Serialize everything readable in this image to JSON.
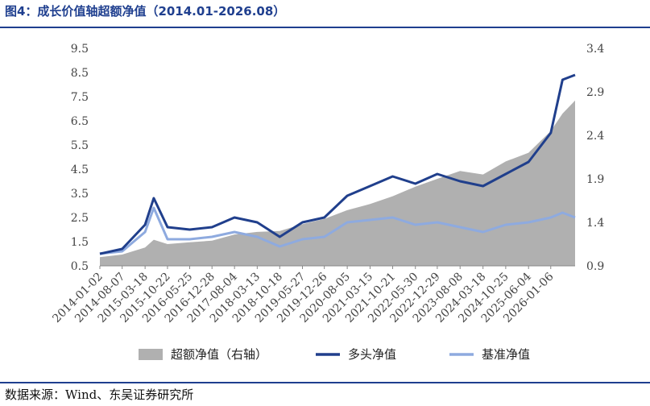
{
  "figure_title": "图4：成长价值轴超额净值（2014.01-2026.08）",
  "source": "数据来源：Wind、东吴证券研究所",
  "colors": {
    "excess_area": "#b0b0b0",
    "long_nav": "#203f8c",
    "benchmark_nav": "#8eaadf",
    "rule": "#1f3f8f"
  },
  "chart_data": {
    "type": "line",
    "title": "图4：成长价值轴超额净值（2014.01-2026.08）",
    "x_tick_labels": [
      "2014-01-02",
      "2014-08-07",
      "2015-03-18",
      "2015-10-22",
      "2016-05-25",
      "2016-12-28",
      "2017-08-04",
      "2018-03-13",
      "2018-10-18",
      "2019-05-27",
      "2019-12-26",
      "2020-08-05",
      "2021-03-15",
      "2021-10-21",
      "2022-05-30",
      "2022-12-29",
      "2023-08-08",
      "2024-03-18",
      "2024-10-25",
      "2025-06-04",
      "2026-01-06"
    ],
    "x_range": [
      "2014-01-02",
      "2026-08-31"
    ],
    "y_left": {
      "min": 0.5,
      "max": 9.5,
      "ticks": [
        0.5,
        1.5,
        2.5,
        3.5,
        4.5,
        5.5,
        6.5,
        7.5,
        8.5,
        9.5
      ]
    },
    "y_right": {
      "min": 0.9,
      "max": 3.4,
      "ticks": [
        0.9,
        1.4,
        1.9,
        2.4,
        2.9,
        3.4
      ]
    },
    "grid": false,
    "legend_position": "bottom",
    "series": [
      {
        "name": "超额净值（右轴）",
        "type": "area",
        "axis": "right",
        "x": [
          "2014-01-02",
          "2014-08-07",
          "2015-03-18",
          "2015-06-10",
          "2015-10-22",
          "2016-05-25",
          "2016-12-28",
          "2017-08-04",
          "2018-03-13",
          "2018-10-18",
          "2019-05-27",
          "2019-12-26",
          "2020-08-05",
          "2021-03-15",
          "2021-10-21",
          "2022-05-30",
          "2022-12-29",
          "2023-08-08",
          "2024-03-18",
          "2024-10-25",
          "2025-06-04",
          "2026-01-06",
          "2026-05-01",
          "2026-08-31"
        ],
        "values": [
          1.0,
          1.03,
          1.11,
          1.2,
          1.15,
          1.17,
          1.19,
          1.26,
          1.29,
          1.3,
          1.38,
          1.44,
          1.54,
          1.61,
          1.7,
          1.81,
          1.9,
          1.99,
          1.95,
          2.1,
          2.2,
          2.45,
          2.65,
          2.8
        ]
      },
      {
        "name": "多头净值",
        "type": "line",
        "axis": "left",
        "x": [
          "2014-01-02",
          "2014-08-07",
          "2015-03-18",
          "2015-06-10",
          "2015-10-22",
          "2016-05-25",
          "2016-12-28",
          "2017-08-04",
          "2018-03-13",
          "2018-10-18",
          "2019-05-27",
          "2019-12-26",
          "2020-08-05",
          "2021-03-15",
          "2021-10-21",
          "2022-05-30",
          "2022-12-29",
          "2023-08-08",
          "2024-03-18",
          "2024-10-25",
          "2025-06-04",
          "2026-01-06",
          "2026-05-01",
          "2026-08-31"
        ],
        "values": [
          1.0,
          1.2,
          2.2,
          3.3,
          2.1,
          2.0,
          2.1,
          2.5,
          2.3,
          1.7,
          2.3,
          2.5,
          3.4,
          3.8,
          4.2,
          3.9,
          4.3,
          4.0,
          3.8,
          4.3,
          4.8,
          6.0,
          8.2,
          8.4
        ]
      },
      {
        "name": "基准净值",
        "type": "line",
        "axis": "left",
        "x": [
          "2014-01-02",
          "2014-08-07",
          "2015-03-18",
          "2015-06-10",
          "2015-10-22",
          "2016-05-25",
          "2016-12-28",
          "2017-08-04",
          "2018-03-13",
          "2018-10-18",
          "2019-05-27",
          "2019-12-26",
          "2020-08-05",
          "2021-03-15",
          "2021-10-21",
          "2022-05-30",
          "2022-12-29",
          "2023-08-08",
          "2024-03-18",
          "2024-10-25",
          "2025-06-04",
          "2026-01-06",
          "2026-05-01",
          "2026-08-31"
        ],
        "values": [
          1.0,
          1.1,
          1.9,
          2.9,
          1.6,
          1.6,
          1.7,
          1.9,
          1.7,
          1.3,
          1.6,
          1.7,
          2.3,
          2.4,
          2.5,
          2.2,
          2.3,
          2.1,
          1.9,
          2.2,
          2.3,
          2.5,
          2.7,
          2.5
        ]
      }
    ]
  }
}
